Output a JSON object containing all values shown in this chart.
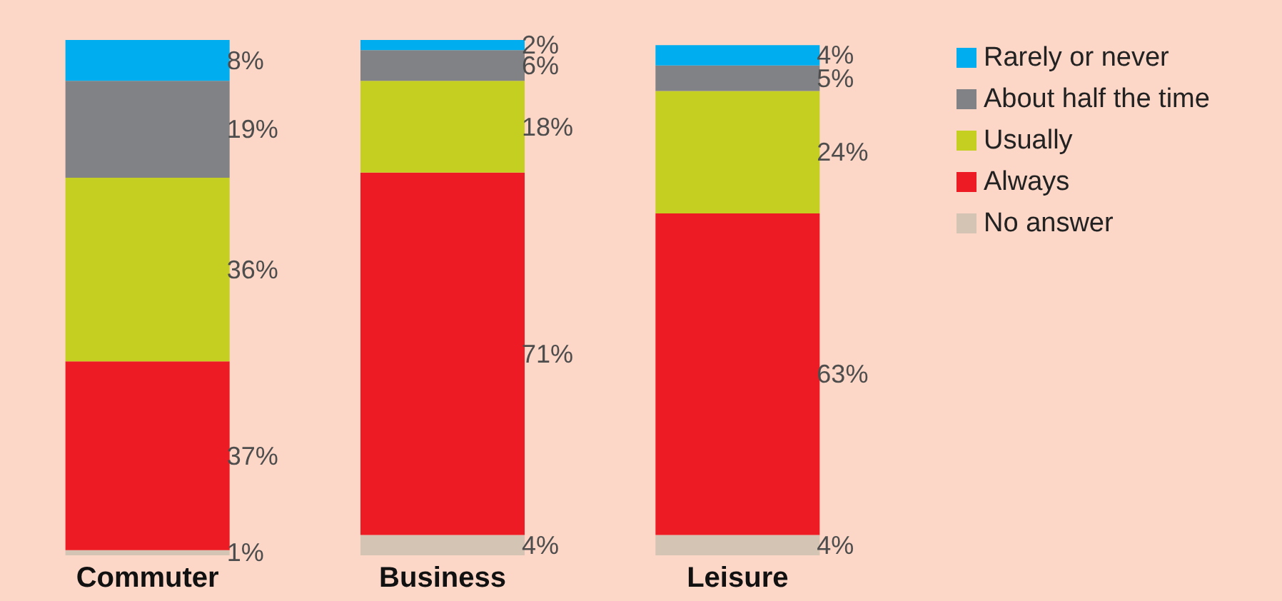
{
  "chart_data": {
    "type": "bar",
    "stacked": true,
    "categories": [
      "Commuter",
      "Business",
      "Leisure"
    ],
    "series": [
      {
        "name": "No answer",
        "color": "#d3c4b4",
        "values": [
          1,
          4,
          4
        ],
        "value_labels": [
          "1%",
          "4%",
          "4%"
        ]
      },
      {
        "name": "Always",
        "color": "#ed1c24",
        "values": [
          37,
          71,
          63
        ],
        "value_labels": [
          "37%",
          "71%",
          "63%"
        ]
      },
      {
        "name": "Usually",
        "color": "#c4cf22",
        "values": [
          36,
          18,
          24
        ],
        "value_labels": [
          "36%",
          "18%",
          "24%"
        ]
      },
      {
        "name": "About half the time",
        "color": "#808285",
        "values": [
          19,
          6,
          5
        ],
        "value_labels": [
          "19%",
          "6%",
          "5%"
        ]
      },
      {
        "name": "Rarely or never",
        "color": "#00aeef",
        "values": [
          8,
          2,
          4
        ],
        "value_labels": [
          "8%",
          "2%",
          "4%"
        ]
      }
    ],
    "legend": "top right"
  }
}
